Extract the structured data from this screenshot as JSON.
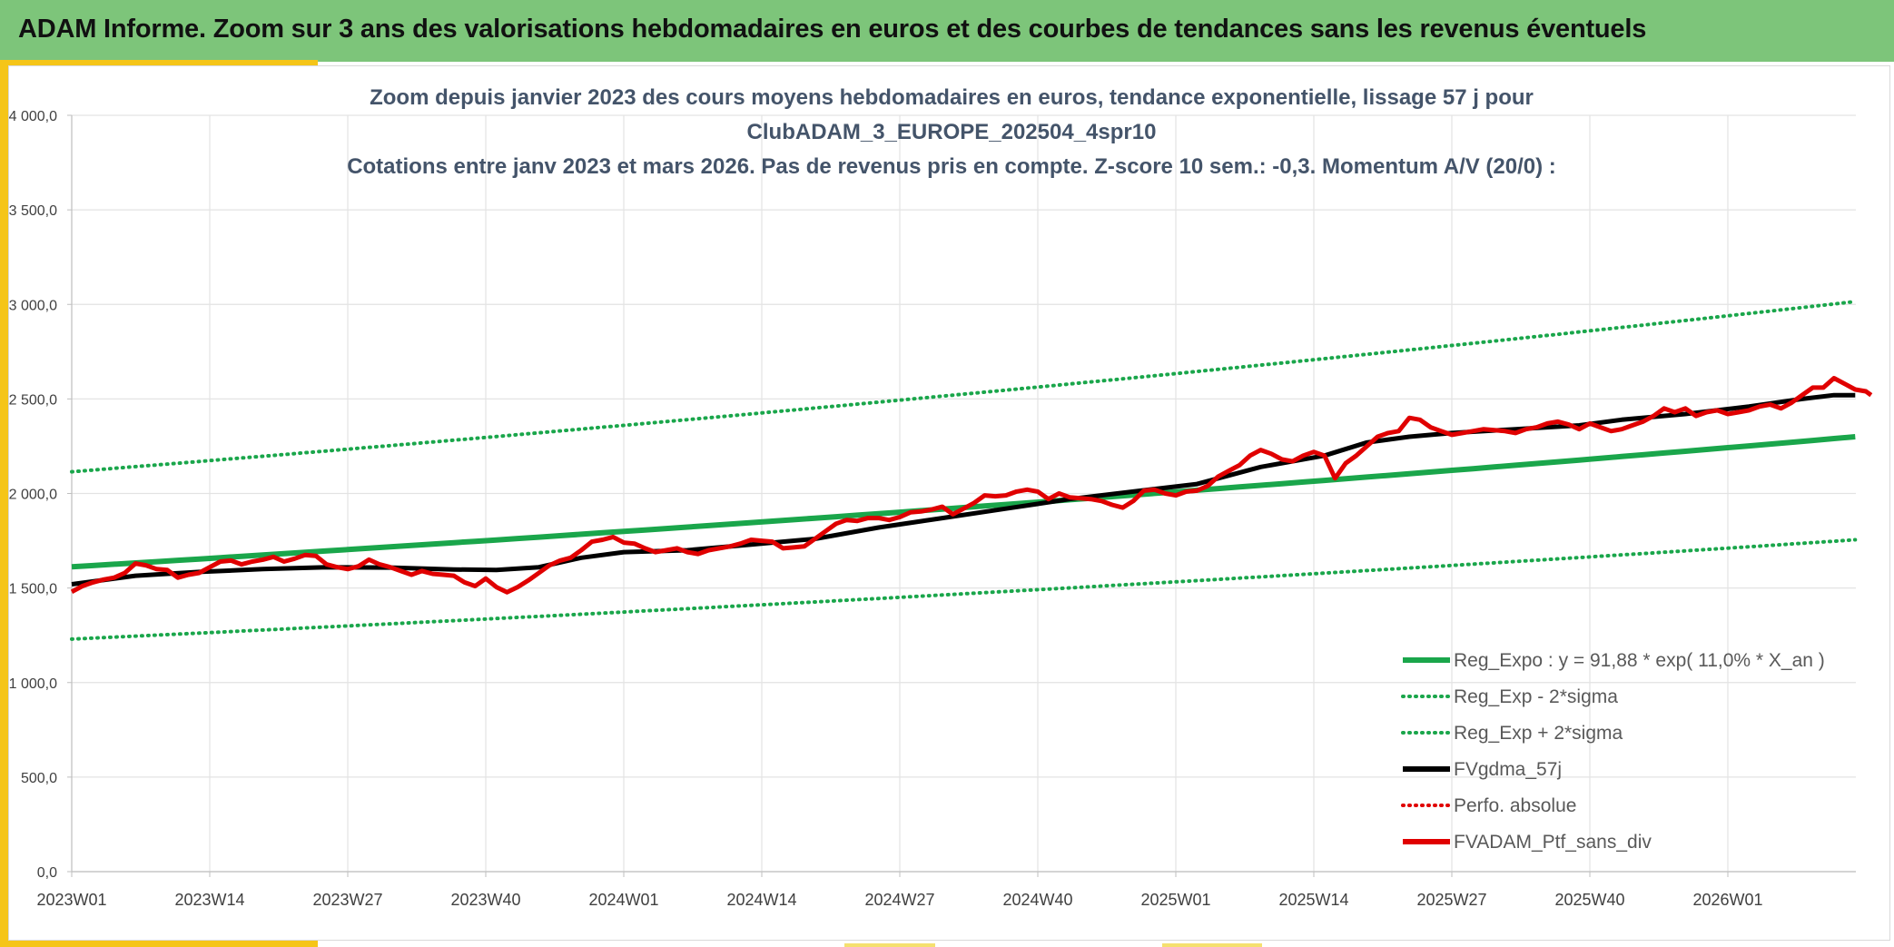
{
  "header": {
    "title": "ADAM Informe. Zoom sur 3 ans des valorisations hebdomadaires en euros et des courbes de tendances sans les revenus éventuels"
  },
  "colors": {
    "header_bg": "#7dc57a",
    "accent": "#f5c518",
    "reg_green": "#1aa64b",
    "black": "#000000",
    "red": "#e00000",
    "grid": "#e3e3e3"
  },
  "chart_data": {
    "type": "line",
    "title_lines": [
      "Zoom depuis janvier 2023 des cours moyens hebdomadaires en euros, tendance exponentielle, lissage 57 j pour",
      "ClubADAM_3_EUROPE_202504_4spr10",
      "Cotations entre janv 2023 et mars 2026. Pas de revenus pris en compte. Z-score 10 sem.: -0,3. Momentum A/V (20/0) :"
    ],
    "y_ticks": [
      "0,0",
      "500,0",
      "1 000,0",
      "1 500,0",
      "2 000,0",
      "2 500,0",
      "3 000,0",
      "3 500,0",
      "4 000,0"
    ],
    "ylim": [
      0,
      4000
    ],
    "x_ticks": [
      "2023W01",
      "2023W14",
      "2023W27",
      "2023W40",
      "2024W01",
      "2024W14",
      "2024W27",
      "2024W40",
      "2025W01",
      "2025W14",
      "2025W27",
      "2025W40",
      "2026W01"
    ],
    "x_tick_week_index": [
      0,
      13,
      26,
      39,
      52,
      65,
      78,
      91,
      104,
      117,
      130,
      143,
      156
    ],
    "x_range_weeks": [
      0,
      168
    ],
    "legend": [
      {
        "label": "Reg_Expo : y = 91,88 * exp( 11,0% *  X_an )",
        "style": "solid-green"
      },
      {
        "label": "Reg_Exp - 2*sigma",
        "style": "dotted-green"
      },
      {
        "label": "Reg_Exp + 2*sigma",
        "style": "dotted-green"
      },
      {
        "label": "FVgdma_57j",
        "style": "solid-black"
      },
      {
        "label": "Perfo. absolue",
        "style": "dotted-red"
      },
      {
        "label": "FVADAM_Ptf_sans_div",
        "style": "solid-red"
      }
    ],
    "series": [
      {
        "name": "Reg_Expo",
        "start": 1612,
        "end": 2300
      },
      {
        "name": "Reg_Exp - 2*sigma",
        "start": 1230,
        "end": 1755
      },
      {
        "name": "Reg_Exp + 2*sigma",
        "start": 2115,
        "end": 3015
      },
      {
        "name": "FVgdma_57j",
        "points": [
          [
            0,
            1520
          ],
          [
            6,
            1565
          ],
          [
            12,
            1585
          ],
          [
            18,
            1600
          ],
          [
            24,
            1610
          ],
          [
            30,
            1608
          ],
          [
            36,
            1598
          ],
          [
            40,
            1595
          ],
          [
            44,
            1610
          ],
          [
            48,
            1660
          ],
          [
            52,
            1690
          ],
          [
            58,
            1700
          ],
          [
            64,
            1730
          ],
          [
            70,
            1760
          ],
          [
            76,
            1820
          ],
          [
            82,
            1870
          ],
          [
            88,
            1920
          ],
          [
            94,
            1970
          ],
          [
            100,
            2010
          ],
          [
            106,
            2050
          ],
          [
            112,
            2140
          ],
          [
            118,
            2200
          ],
          [
            122,
            2270
          ],
          [
            126,
            2300
          ],
          [
            130,
            2320
          ],
          [
            136,
            2340
          ],
          [
            142,
            2360
          ],
          [
            146,
            2390
          ],
          [
            152,
            2420
          ],
          [
            158,
            2460
          ],
          [
            163,
            2500
          ],
          [
            166,
            2520
          ],
          [
            168,
            2520
          ]
        ]
      },
      {
        "name": "FVADAM_Ptf_sans_div",
        "points": [
          [
            0,
            1480
          ],
          [
            1,
            1510
          ],
          [
            2,
            1530
          ],
          [
            3,
            1545
          ],
          [
            4,
            1555
          ],
          [
            5,
            1580
          ],
          [
            6,
            1630
          ],
          [
            7,
            1620
          ],
          [
            8,
            1600
          ],
          [
            9,
            1595
          ],
          [
            10,
            1555
          ],
          [
            11,
            1570
          ],
          [
            12,
            1580
          ],
          [
            13,
            1610
          ],
          [
            14,
            1640
          ],
          [
            15,
            1645
          ],
          [
            16,
            1625
          ],
          [
            17,
            1640
          ],
          [
            18,
            1650
          ],
          [
            19,
            1665
          ],
          [
            20,
            1640
          ],
          [
            21,
            1655
          ],
          [
            22,
            1675
          ],
          [
            23,
            1670
          ],
          [
            24,
            1625
          ],
          [
            25,
            1610
          ],
          [
            26,
            1600
          ],
          [
            27,
            1615
          ],
          [
            28,
            1650
          ],
          [
            29,
            1625
          ],
          [
            30,
            1610
          ],
          [
            31,
            1590
          ],
          [
            32,
            1570
          ],
          [
            33,
            1590
          ],
          [
            34,
            1575
          ],
          [
            35,
            1570
          ],
          [
            36,
            1565
          ],
          [
            37,
            1530
          ],
          [
            38,
            1510
          ],
          [
            39,
            1550
          ],
          [
            40,
            1505
          ],
          [
            41,
            1478
          ],
          [
            42,
            1505
          ],
          [
            43,
            1540
          ],
          [
            44,
            1580
          ],
          [
            45,
            1620
          ],
          [
            46,
            1645
          ],
          [
            47,
            1660
          ],
          [
            48,
            1700
          ],
          [
            49,
            1745
          ],
          [
            50,
            1755
          ],
          [
            51,
            1770
          ],
          [
            52,
            1740
          ],
          [
            53,
            1735
          ],
          [
            54,
            1710
          ],
          [
            55,
            1690
          ],
          [
            56,
            1700
          ],
          [
            57,
            1710
          ],
          [
            58,
            1690
          ],
          [
            59,
            1680
          ],
          [
            60,
            1700
          ],
          [
            61,
            1710
          ],
          [
            62,
            1720
          ],
          [
            63,
            1735
          ],
          [
            64,
            1755
          ],
          [
            65,
            1750
          ],
          [
            66,
            1745
          ],
          [
            67,
            1710
          ],
          [
            68,
            1715
          ],
          [
            69,
            1720
          ],
          [
            70,
            1760
          ],
          [
            71,
            1800
          ],
          [
            72,
            1840
          ],
          [
            73,
            1860
          ],
          [
            74,
            1855
          ],
          [
            75,
            1870
          ],
          [
            76,
            1870
          ],
          [
            77,
            1860
          ],
          [
            78,
            1875
          ],
          [
            79,
            1900
          ],
          [
            80,
            1905
          ],
          [
            81,
            1915
          ],
          [
            82,
            1930
          ],
          [
            83,
            1890
          ],
          [
            84,
            1920
          ],
          [
            85,
            1950
          ],
          [
            86,
            1990
          ],
          [
            87,
            1985
          ],
          [
            88,
            1990
          ],
          [
            89,
            2010
          ],
          [
            90,
            2020
          ],
          [
            91,
            2010
          ],
          [
            92,
            1970
          ],
          [
            93,
            2000
          ],
          [
            94,
            1980
          ],
          [
            95,
            1975
          ],
          [
            96,
            1970
          ],
          [
            97,
            1960
          ],
          [
            98,
            1940
          ],
          [
            99,
            1925
          ],
          [
            100,
            1960
          ],
          [
            101,
            2015
          ],
          [
            102,
            2020
          ],
          [
            103,
            2000
          ],
          [
            104,
            1990
          ],
          [
            105,
            2010
          ],
          [
            106,
            2015
          ],
          [
            107,
            2040
          ],
          [
            108,
            2090
          ],
          [
            109,
            2120
          ],
          [
            110,
            2150
          ],
          [
            111,
            2200
          ],
          [
            112,
            2230
          ],
          [
            113,
            2210
          ],
          [
            114,
            2180
          ],
          [
            115,
            2170
          ],
          [
            116,
            2200
          ],
          [
            117,
            2220
          ],
          [
            118,
            2200
          ],
          [
            119,
            2080
          ],
          [
            120,
            2160
          ],
          [
            121,
            2200
          ],
          [
            122,
            2250
          ],
          [
            123,
            2300
          ],
          [
            124,
            2320
          ],
          [
            125,
            2330
          ],
          [
            126,
            2400
          ],
          [
            127,
            2390
          ],
          [
            128,
            2350
          ],
          [
            129,
            2330
          ],
          [
            130,
            2310
          ],
          [
            131,
            2320
          ],
          [
            132,
            2330
          ],
          [
            133,
            2340
          ],
          [
            134,
            2335
          ],
          [
            135,
            2330
          ],
          [
            136,
            2320
          ],
          [
            137,
            2340
          ],
          [
            138,
            2350
          ],
          [
            139,
            2370
          ],
          [
            140,
            2380
          ],
          [
            141,
            2365
          ],
          [
            142,
            2340
          ],
          [
            143,
            2370
          ],
          [
            144,
            2350
          ],
          [
            145,
            2330
          ],
          [
            146,
            2340
          ],
          [
            147,
            2360
          ],
          [
            148,
            2380
          ],
          [
            149,
            2410
          ],
          [
            150,
            2450
          ],
          [
            151,
            2430
          ],
          [
            152,
            2450
          ],
          [
            153,
            2410
          ],
          [
            154,
            2430
          ],
          [
            155,
            2440
          ],
          [
            156,
            2420
          ],
          [
            157,
            2430
          ],
          [
            158,
            2440
          ],
          [
            159,
            2460
          ],
          [
            160,
            2470
          ],
          [
            161,
            2450
          ],
          [
            162,
            2480
          ],
          [
            163,
            2520
          ],
          [
            164,
            2560
          ],
          [
            165,
            2560
          ],
          [
            166,
            2610
          ],
          [
            167,
            2580
          ],
          [
            168,
            2550
          ],
          [
            169,
            2540
          ],
          [
            169.5,
            2520
          ]
        ]
      }
    ]
  }
}
